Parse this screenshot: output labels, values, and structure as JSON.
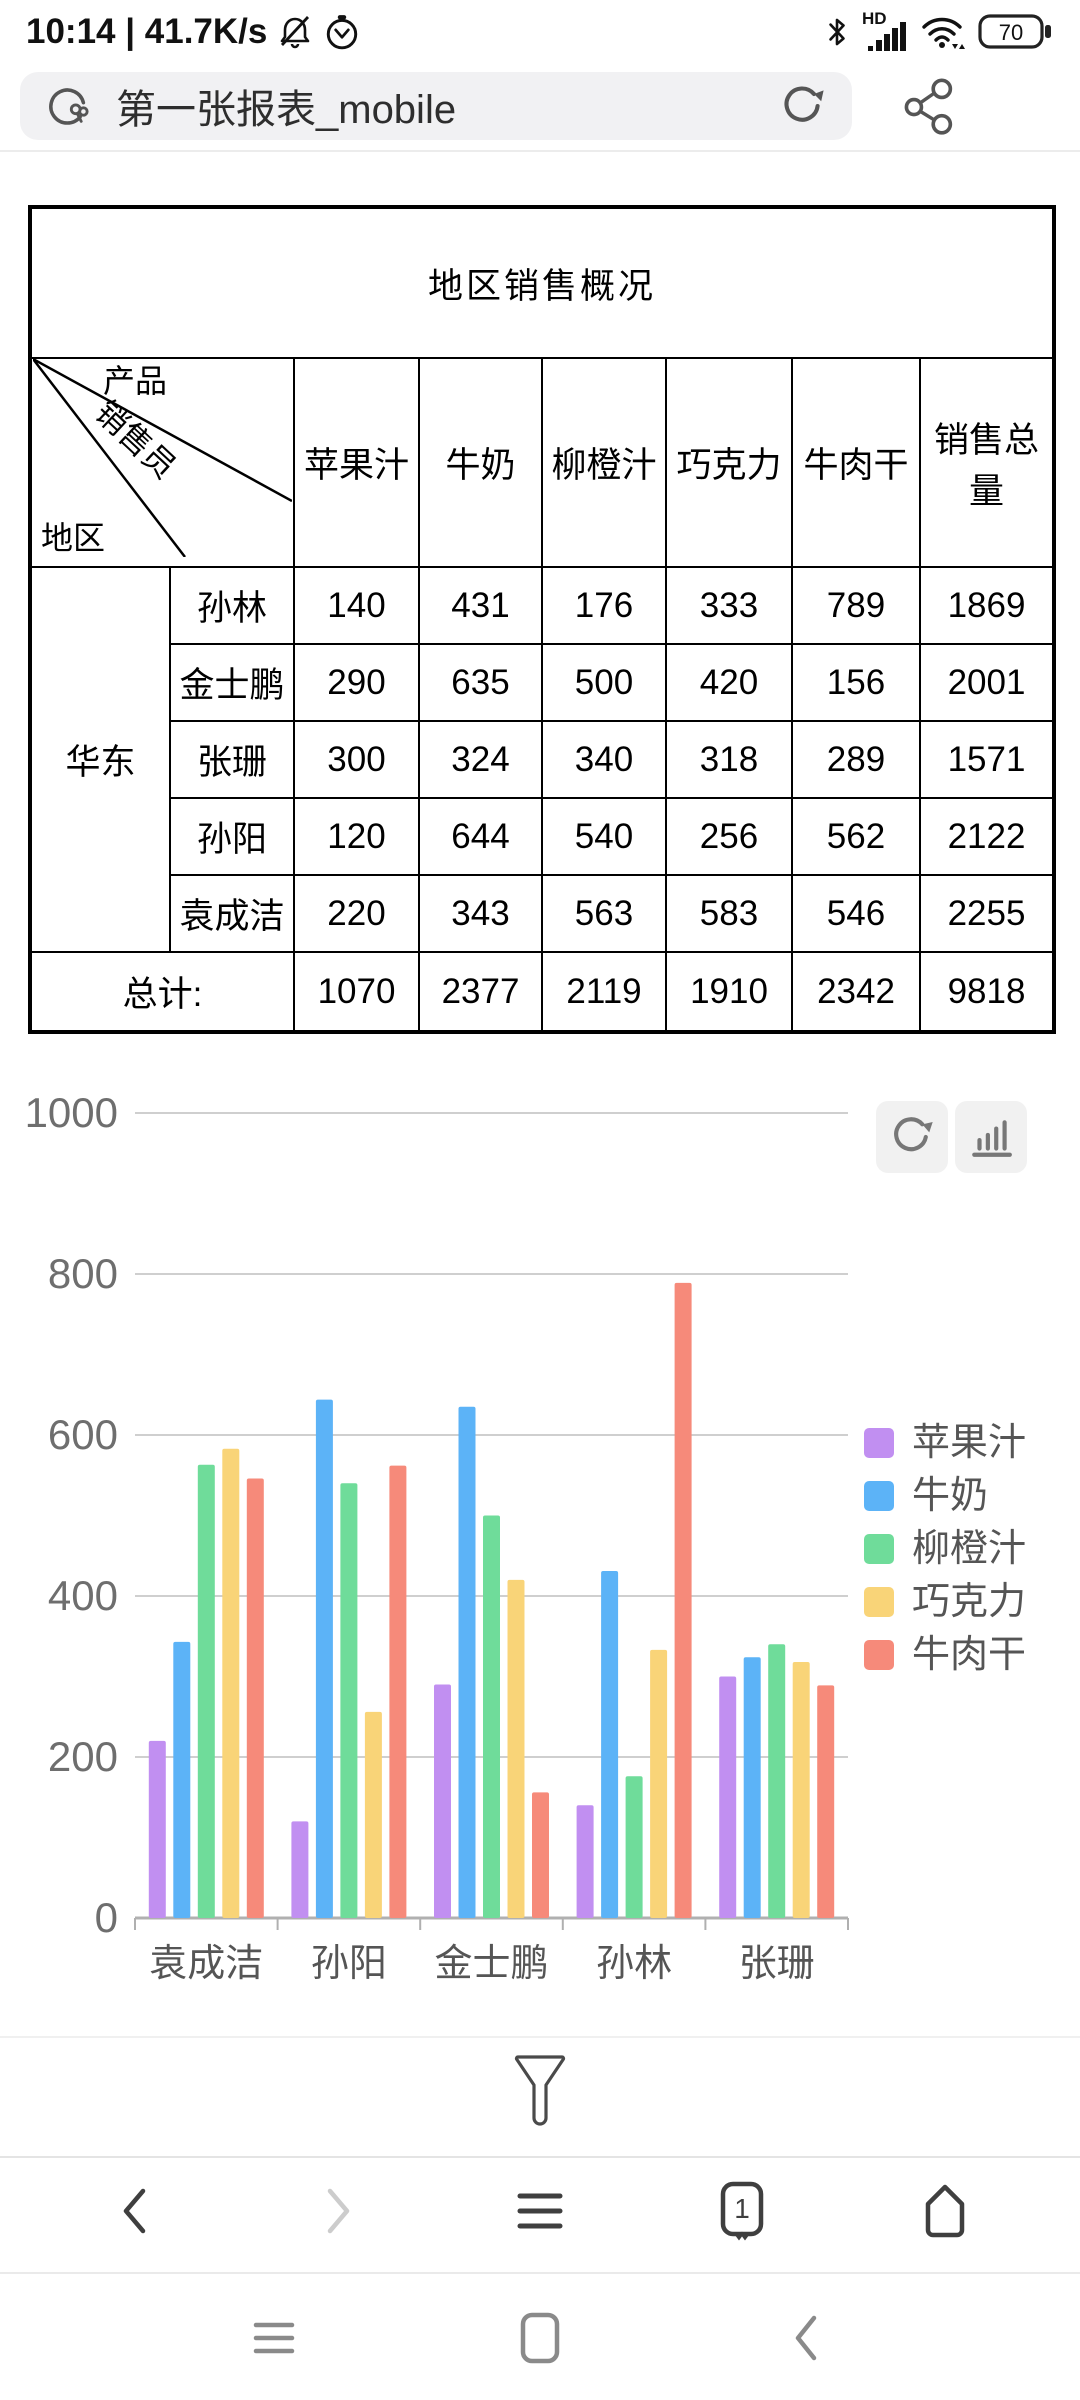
{
  "status_bar": {
    "time_and_speed": "10:14 | 41.7K/s",
    "hd_label": "HD",
    "battery_level": "70",
    "icons": [
      "bell-slash-icon",
      "alarm-clock-icon",
      "bluetooth-icon",
      "signal-bars-icon",
      "wifi-icon",
      "battery-icon"
    ]
  },
  "address_bar": {
    "title": "第一张报表_mobile",
    "icons": [
      "browser-logo-icon",
      "refresh-icon",
      "share-icon"
    ]
  },
  "table": {
    "title": "地区销售概况",
    "corner": {
      "top": "产品",
      "middle": "销售员",
      "bottom": "地区"
    },
    "products": [
      "苹果汁",
      "牛奶",
      "柳橙汁",
      "巧克力",
      "牛肉干",
      "销售总量"
    ],
    "region": "华东",
    "rows": [
      {
        "name": "孙林",
        "values": [
          140,
          431,
          176,
          333,
          789,
          1869
        ]
      },
      {
        "name": "金士鹏",
        "values": [
          290,
          635,
          500,
          420,
          156,
          2001
        ]
      },
      {
        "name": "张珊",
        "values": [
          300,
          324,
          340,
          318,
          289,
          1571
        ]
      },
      {
        "name": "孙阳",
        "values": [
          120,
          644,
          540,
          256,
          562,
          2122
        ]
      },
      {
        "name": "袁成洁",
        "values": [
          220,
          343,
          563,
          583,
          546,
          2255
        ]
      }
    ],
    "totals_label": "总计:",
    "totals": [
      1070,
      2377,
      2119,
      1910,
      2342,
      9818
    ]
  },
  "chart_data": {
    "type": "bar",
    "title": "",
    "categories": [
      "袁成洁",
      "孙阳",
      "金士鹏",
      "孙林",
      "张珊"
    ],
    "series": [
      {
        "name": "苹果汁",
        "color": "#c18ff1",
        "values": [
          220,
          120,
          290,
          140,
          300
        ]
      },
      {
        "name": "牛奶",
        "color": "#5cb3f7",
        "values": [
          343,
          644,
          635,
          431,
          324
        ]
      },
      {
        "name": "柳橙汁",
        "color": "#6fdc9a",
        "values": [
          563,
          540,
          500,
          176,
          340
        ]
      },
      {
        "name": "巧克力",
        "color": "#f9d478",
        "values": [
          583,
          256,
          420,
          333,
          318
        ]
      },
      {
        "name": "牛肉干",
        "color": "#f68a7a",
        "values": [
          546,
          562,
          156,
          789,
          289
        ]
      }
    ],
    "ylim": [
      0,
      1000
    ],
    "yticks": [
      0,
      200,
      400,
      600,
      800,
      1000
    ],
    "grid": true,
    "legend_position": "right",
    "toolbar_icons": [
      "refresh-icon",
      "bar-chart-type-icon"
    ]
  },
  "footer": {
    "filter_icon": "funnel-icon",
    "browser_nav_icons": [
      "back-icon",
      "forward-icon",
      "menu-icon",
      "tabs-icon",
      "home-icon"
    ],
    "tab_count": "1",
    "system_nav_icons": [
      "system-menu-icon",
      "system-recents-icon",
      "system-back-icon"
    ]
  }
}
